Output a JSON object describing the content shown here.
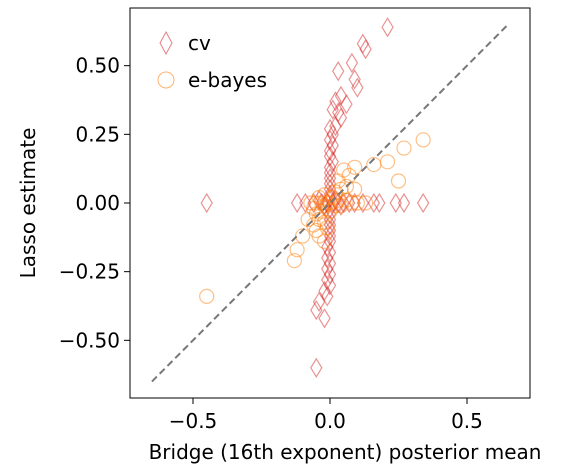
{
  "chart_data": {
    "type": "scatter",
    "xlabel": "Bridge (16th exponent) posterior mean",
    "ylabel": "Lasso estimate",
    "xlim": [
      -0.73,
      0.73
    ],
    "ylim": [
      -0.71,
      0.71
    ],
    "x_ticks": [
      -0.5,
      0.0,
      0.5
    ],
    "x_tick_labels": [
      "−0.5",
      "0.0",
      "0.5"
    ],
    "y_ticks": [
      -0.5,
      -0.25,
      0.0,
      0.25,
      0.5
    ],
    "y_tick_labels": [
      "−0.50",
      "−0.25",
      "0.00",
      "0.25",
      "0.50"
    ],
    "grid": false,
    "legend_position": "top-left",
    "reference_line": {
      "style": "dashed",
      "color": "#777777",
      "from": [
        -0.65,
        -0.65
      ],
      "to": [
        0.65,
        0.65
      ]
    },
    "series": [
      {
        "name": "cv",
        "marker": "thin_diamond",
        "color": "#d62728",
        "points": [
          [
            0.21,
            0.64
          ],
          [
            0.12,
            0.58
          ],
          [
            0.13,
            0.56
          ],
          [
            0.08,
            0.51
          ],
          [
            0.03,
            0.48
          ],
          [
            0.09,
            0.45
          ],
          [
            0.1,
            0.42
          ],
          [
            0.04,
            0.39
          ],
          [
            0.02,
            0.37
          ],
          [
            0.06,
            0.36
          ],
          [
            0.03,
            0.33
          ],
          [
            0.04,
            0.31
          ],
          [
            0.01,
            0.34
          ],
          [
            0.02,
            0.28
          ],
          [
            0.0,
            0.27
          ],
          [
            0.01,
            0.25
          ],
          [
            0.0,
            0.23
          ],
          [
            0.01,
            0.21
          ],
          [
            0.0,
            0.19
          ],
          [
            0.0,
            0.17
          ],
          [
            0.01,
            0.15
          ],
          [
            0.0,
            0.13
          ],
          [
            0.0,
            0.11
          ],
          [
            0.0,
            0.09
          ],
          [
            0.0,
            0.07
          ],
          [
            0.0,
            0.05
          ],
          [
            0.0,
            0.03
          ],
          [
            0.0,
            0.02
          ],
          [
            0.0,
            -0.02
          ],
          [
            0.0,
            -0.04
          ],
          [
            0.0,
            -0.06
          ],
          [
            0.0,
            -0.08
          ],
          [
            0.0,
            -0.1
          ],
          [
            0.0,
            -0.12
          ],
          [
            0.0,
            -0.14
          ],
          [
            -0.01,
            -0.16
          ],
          [
            0.0,
            -0.18
          ],
          [
            -0.01,
            -0.2
          ],
          [
            0.0,
            -0.22
          ],
          [
            -0.01,
            -0.24
          ],
          [
            0.0,
            -0.26
          ],
          [
            -0.01,
            -0.28
          ],
          [
            0.0,
            -0.3
          ],
          [
            -0.02,
            -0.32
          ],
          [
            -0.01,
            -0.34
          ],
          [
            -0.04,
            -0.36
          ],
          [
            -0.05,
            -0.39
          ],
          [
            -0.02,
            -0.42
          ],
          [
            -0.05,
            -0.6
          ],
          [
            -0.45,
            0.0
          ],
          [
            0.34,
            0.0
          ],
          [
            0.24,
            0.0
          ],
          [
            0.27,
            0.0
          ],
          [
            0.16,
            0.0
          ],
          [
            0.18,
            0.0
          ],
          [
            0.12,
            0.0
          ],
          [
            0.09,
            0.0
          ],
          [
            0.07,
            0.0
          ],
          [
            0.05,
            0.0
          ],
          [
            0.03,
            0.0
          ],
          [
            -0.03,
            0.0
          ],
          [
            -0.06,
            0.0
          ],
          [
            -0.09,
            0.0
          ],
          [
            -0.12,
            0.0
          ],
          [
            -0.04,
            0.01
          ],
          [
            -0.02,
            -0.01
          ],
          [
            0.02,
            0.01
          ],
          [
            0.04,
            -0.01
          ],
          [
            0.01,
            0.0
          ],
          [
            -0.01,
            0.0
          ]
        ]
      },
      {
        "name": "e-bayes",
        "marker": "circle",
        "color": "#ff7f0e",
        "points": [
          [
            0.34,
            0.23
          ],
          [
            0.27,
            0.2
          ],
          [
            0.21,
            0.15
          ],
          [
            0.16,
            0.14
          ],
          [
            0.25,
            0.08
          ],
          [
            0.09,
            0.13
          ],
          [
            0.05,
            0.12
          ],
          [
            0.07,
            0.1
          ],
          [
            0.03,
            0.08
          ],
          [
            0.06,
            0.06
          ],
          [
            0.04,
            0.05
          ],
          [
            0.09,
            0.05
          ],
          [
            0.02,
            0.04
          ],
          [
            -0.02,
            0.03
          ],
          [
            -0.04,
            0.02
          ],
          [
            0.01,
            0.02
          ],
          [
            0.03,
            0.01
          ],
          [
            0.06,
            0.01
          ],
          [
            0.1,
            0.0
          ],
          [
            0.13,
            0.0
          ],
          [
            0.08,
            0.0
          ],
          [
            0.0,
            0.0
          ],
          [
            -0.01,
            0.0
          ],
          [
            -0.03,
            0.0
          ],
          [
            -0.05,
            0.0
          ],
          [
            -0.07,
            0.0
          ],
          [
            -0.02,
            -0.01
          ],
          [
            0.02,
            -0.01
          ],
          [
            0.04,
            -0.01
          ],
          [
            -0.06,
            -0.02
          ],
          [
            -0.03,
            -0.03
          ],
          [
            0.0,
            -0.03
          ],
          [
            -0.05,
            -0.04
          ],
          [
            -0.04,
            -0.06
          ],
          [
            -0.08,
            -0.06
          ],
          [
            -0.02,
            -0.07
          ],
          [
            -0.06,
            -0.08
          ],
          [
            -0.01,
            -0.09
          ],
          [
            -0.05,
            -0.1
          ],
          [
            -0.1,
            -0.12
          ],
          [
            -0.04,
            -0.12
          ],
          [
            -0.02,
            -0.14
          ],
          [
            -0.12,
            -0.17
          ],
          [
            -0.13,
            -0.21
          ],
          [
            -0.45,
            -0.34
          ]
        ]
      }
    ]
  }
}
